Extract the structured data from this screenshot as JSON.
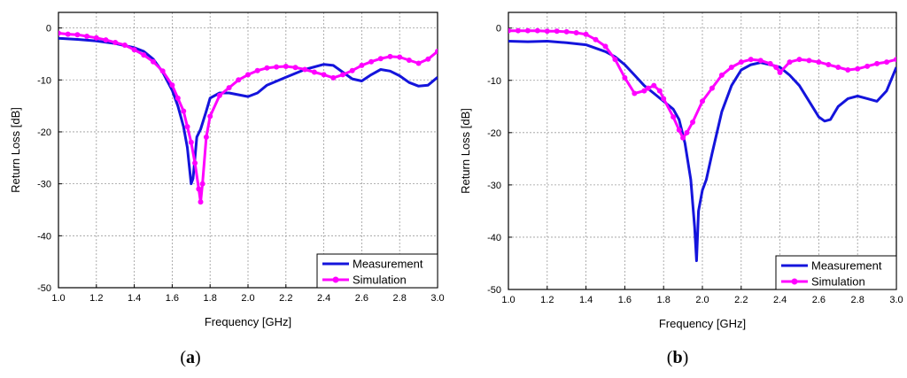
{
  "chart_data": [
    {
      "type": "line",
      "panel_label": "(a)",
      "xlabel": "Frequency [GHz]",
      "ylabel": "Return Loss [dB]",
      "xlim": [
        1.0,
        3.0
      ],
      "ylim": [
        -50,
        3
      ],
      "xticks": [
        "1.0",
        "1.2",
        "1.4",
        "1.6",
        "1.8",
        "2.0",
        "2.2",
        "2.4",
        "2.6",
        "2.8",
        "3.0"
      ],
      "yticks": [
        "0",
        "-10",
        "-20",
        "-30",
        "-40",
        "-50"
      ],
      "grid": true,
      "legend_position": "bottom-right",
      "series": [
        {
          "name": "Measurement",
          "color": "#1414dc",
          "marker": "none",
          "x": [
            1.0,
            1.1,
            1.2,
            1.3,
            1.4,
            1.45,
            1.5,
            1.55,
            1.6,
            1.63,
            1.66,
            1.68,
            1.7,
            1.71,
            1.72,
            1.73,
            1.75,
            1.78,
            1.8,
            1.85,
            1.9,
            2.0,
            2.05,
            2.1,
            2.2,
            2.3,
            2.4,
            2.45,
            2.5,
            2.55,
            2.6,
            2.65,
            2.7,
            2.75,
            2.8,
            2.85,
            2.9,
            2.95,
            3.0
          ],
          "y": [
            -2,
            -2.2,
            -2.5,
            -3,
            -3.8,
            -4.5,
            -6,
            -8.5,
            -12,
            -15,
            -19,
            -23,
            -30,
            -29,
            -25,
            -21,
            -19.5,
            -16,
            -13.5,
            -12.5,
            -12.5,
            -13.2,
            -12.5,
            -11,
            -9.5,
            -8,
            -7,
            -7.2,
            -8.5,
            -9.8,
            -10.2,
            -9,
            -8,
            -8.3,
            -9.2,
            -10.5,
            -11.2,
            -11,
            -9.5
          ]
        },
        {
          "name": "Simulation",
          "color": "#ff00ff",
          "marker": "circle",
          "x": [
            1.0,
            1.05,
            1.1,
            1.15,
            1.2,
            1.25,
            1.3,
            1.35,
            1.4,
            1.45,
            1.5,
            1.55,
            1.6,
            1.63,
            1.66,
            1.68,
            1.7,
            1.72,
            1.74,
            1.75,
            1.76,
            1.78,
            1.8,
            1.85,
            1.9,
            1.95,
            2.0,
            2.05,
            2.1,
            2.15,
            2.2,
            2.25,
            2.3,
            2.35,
            2.4,
            2.45,
            2.5,
            2.55,
            2.6,
            2.65,
            2.7,
            2.75,
            2.8,
            2.85,
            2.9,
            2.95,
            3.0
          ],
          "y": [
            -1,
            -1.2,
            -1.3,
            -1.6,
            -1.9,
            -2.3,
            -2.8,
            -3.3,
            -4.2,
            -5.2,
            -6.5,
            -8.3,
            -11,
            -13.5,
            -16,
            -19,
            -22,
            -26,
            -31,
            -33.5,
            -30,
            -21,
            -17,
            -13,
            -11.5,
            -10,
            -9,
            -8.2,
            -7.7,
            -7.5,
            -7.4,
            -7.6,
            -8,
            -8.5,
            -9,
            -9.6,
            -9,
            -8.2,
            -7.2,
            -6.5,
            -5.9,
            -5.5,
            -5.6,
            -6.2,
            -6.8,
            -6,
            -4.5
          ]
        }
      ]
    },
    {
      "type": "line",
      "panel_label": "(b)",
      "xlabel": "Frequency [GHz]",
      "ylabel": "Return Loss [dB]",
      "xlim": [
        1.0,
        3.0
      ],
      "ylim": [
        -50,
        3
      ],
      "xticks": [
        "1.0",
        "1.2",
        "1.4",
        "1.6",
        "1.8",
        "2.0",
        "2.2",
        "2.4",
        "2.6",
        "2.8",
        "3.0"
      ],
      "yticks": [
        "0",
        "-10",
        "-20",
        "-30",
        "-40",
        "-50"
      ],
      "grid": true,
      "legend_position": "bottom-right",
      "series": [
        {
          "name": "Measurement",
          "color": "#1414dc",
          "marker": "none",
          "x": [
            1.0,
            1.1,
            1.2,
            1.3,
            1.4,
            1.5,
            1.55,
            1.6,
            1.65,
            1.7,
            1.75,
            1.8,
            1.85,
            1.88,
            1.91,
            1.94,
            1.96,
            1.97,
            1.98,
            2.0,
            2.02,
            2.05,
            2.1,
            2.15,
            2.2,
            2.25,
            2.3,
            2.35,
            2.4,
            2.45,
            2.5,
            2.55,
            2.6,
            2.63,
            2.66,
            2.7,
            2.75,
            2.8,
            2.85,
            2.9,
            2.95,
            3.0
          ],
          "y": [
            -2.5,
            -2.6,
            -2.5,
            -2.8,
            -3.2,
            -4.5,
            -5.5,
            -7,
            -9,
            -11,
            -12.5,
            -14,
            -15.5,
            -17.5,
            -22,
            -29,
            -38,
            -44.5,
            -35,
            -31,
            -29,
            -24,
            -16,
            -11,
            -8,
            -7,
            -6.6,
            -7,
            -7.5,
            -9,
            -11,
            -14,
            -17,
            -17.8,
            -17.5,
            -15,
            -13.5,
            -13,
            -13.5,
            -14,
            -12,
            -7.5
          ]
        },
        {
          "name": "Simulation",
          "color": "#ff00ff",
          "marker": "circle",
          "x": [
            1.0,
            1.05,
            1.1,
            1.15,
            1.2,
            1.25,
            1.3,
            1.35,
            1.4,
            1.45,
            1.5,
            1.55,
            1.6,
            1.65,
            1.7,
            1.72,
            1.75,
            1.78,
            1.8,
            1.85,
            1.88,
            1.9,
            1.92,
            1.95,
            2.0,
            2.05,
            2.1,
            2.15,
            2.2,
            2.25,
            2.3,
            2.35,
            2.38,
            2.4,
            2.45,
            2.5,
            2.55,
            2.6,
            2.65,
            2.7,
            2.75,
            2.8,
            2.85,
            2.9,
            2.95,
            3.0
          ],
          "y": [
            -0.5,
            -0.5,
            -0.5,
            -0.5,
            -0.6,
            -0.6,
            -0.7,
            -0.9,
            -1.2,
            -2.2,
            -3.5,
            -6,
            -9.5,
            -12.5,
            -12,
            -11.5,
            -11,
            -12,
            -13.5,
            -17,
            -19.5,
            -21,
            -20,
            -18,
            -14,
            -11.5,
            -9,
            -7.5,
            -6.5,
            -6,
            -6.2,
            -6.8,
            -7.5,
            -8.5,
            -6.5,
            -6,
            -6.2,
            -6.5,
            -7,
            -7.5,
            -8,
            -7.8,
            -7.3,
            -6.8,
            -6.5,
            -6
          ]
        }
      ]
    }
  ]
}
